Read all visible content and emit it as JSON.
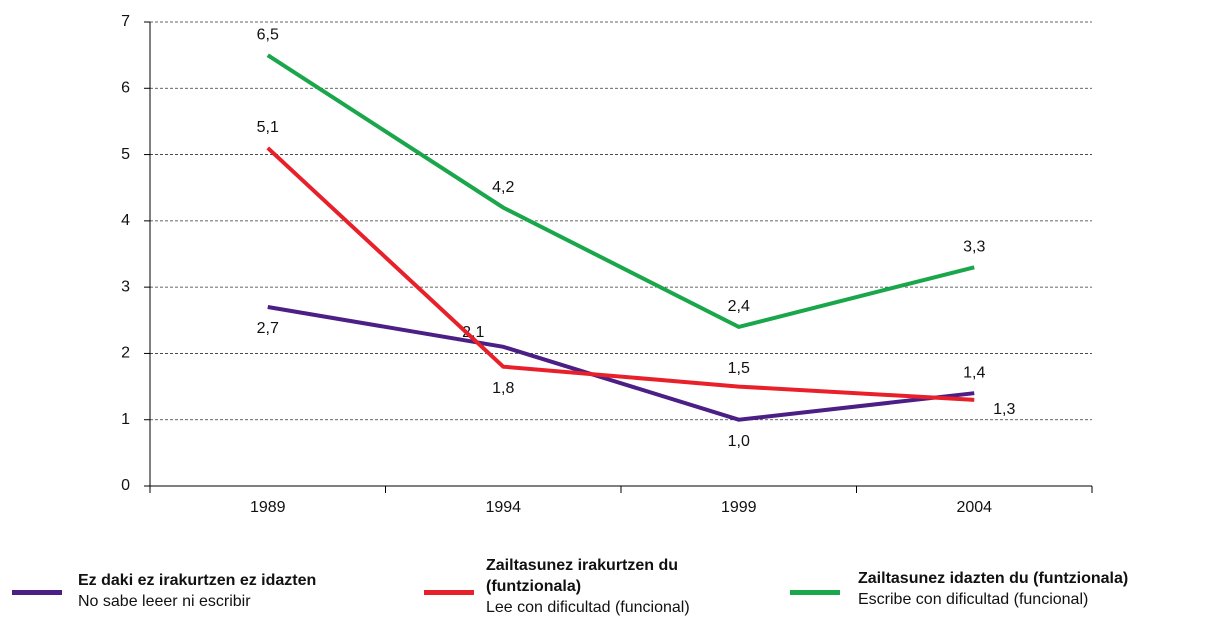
{
  "chart_data": {
    "type": "line",
    "categories": [
      "1989",
      "1994",
      "1999",
      "2004"
    ],
    "series": [
      {
        "name": "Ez daki ez irakurtzen ez idazten",
        "subtitle": "No sabe leeer ni escribir",
        "color": "#4b1f86",
        "values": [
          2.7,
          2.1,
          1.0,
          1.4
        ],
        "value_labels": [
          "2,7",
          "2,1",
          "1,0",
          "1,4"
        ]
      },
      {
        "name": "Zailtasunez irakurtzen du (funtzionala)",
        "subtitle": "Lee con dificultad (funcional)",
        "color": "#e8202a",
        "values": [
          5.1,
          1.8,
          1.5,
          1.3
        ],
        "value_labels": [
          "5,1",
          "1,8",
          "1,5",
          "1,3"
        ]
      },
      {
        "name": "Zailtasunez idazten du (funtzionala)",
        "subtitle": "Escribe con dificultad (funcional)",
        "color": "#1aa64a",
        "values": [
          6.5,
          4.2,
          2.4,
          3.3
        ],
        "value_labels": [
          "6,5",
          "4,2",
          "2,4",
          "3,3"
        ]
      }
    ],
    "ylim": [
      0,
      7
    ],
    "yticks": [
      0,
      1,
      2,
      3,
      4,
      5,
      6,
      7
    ],
    "grid": true
  }
}
